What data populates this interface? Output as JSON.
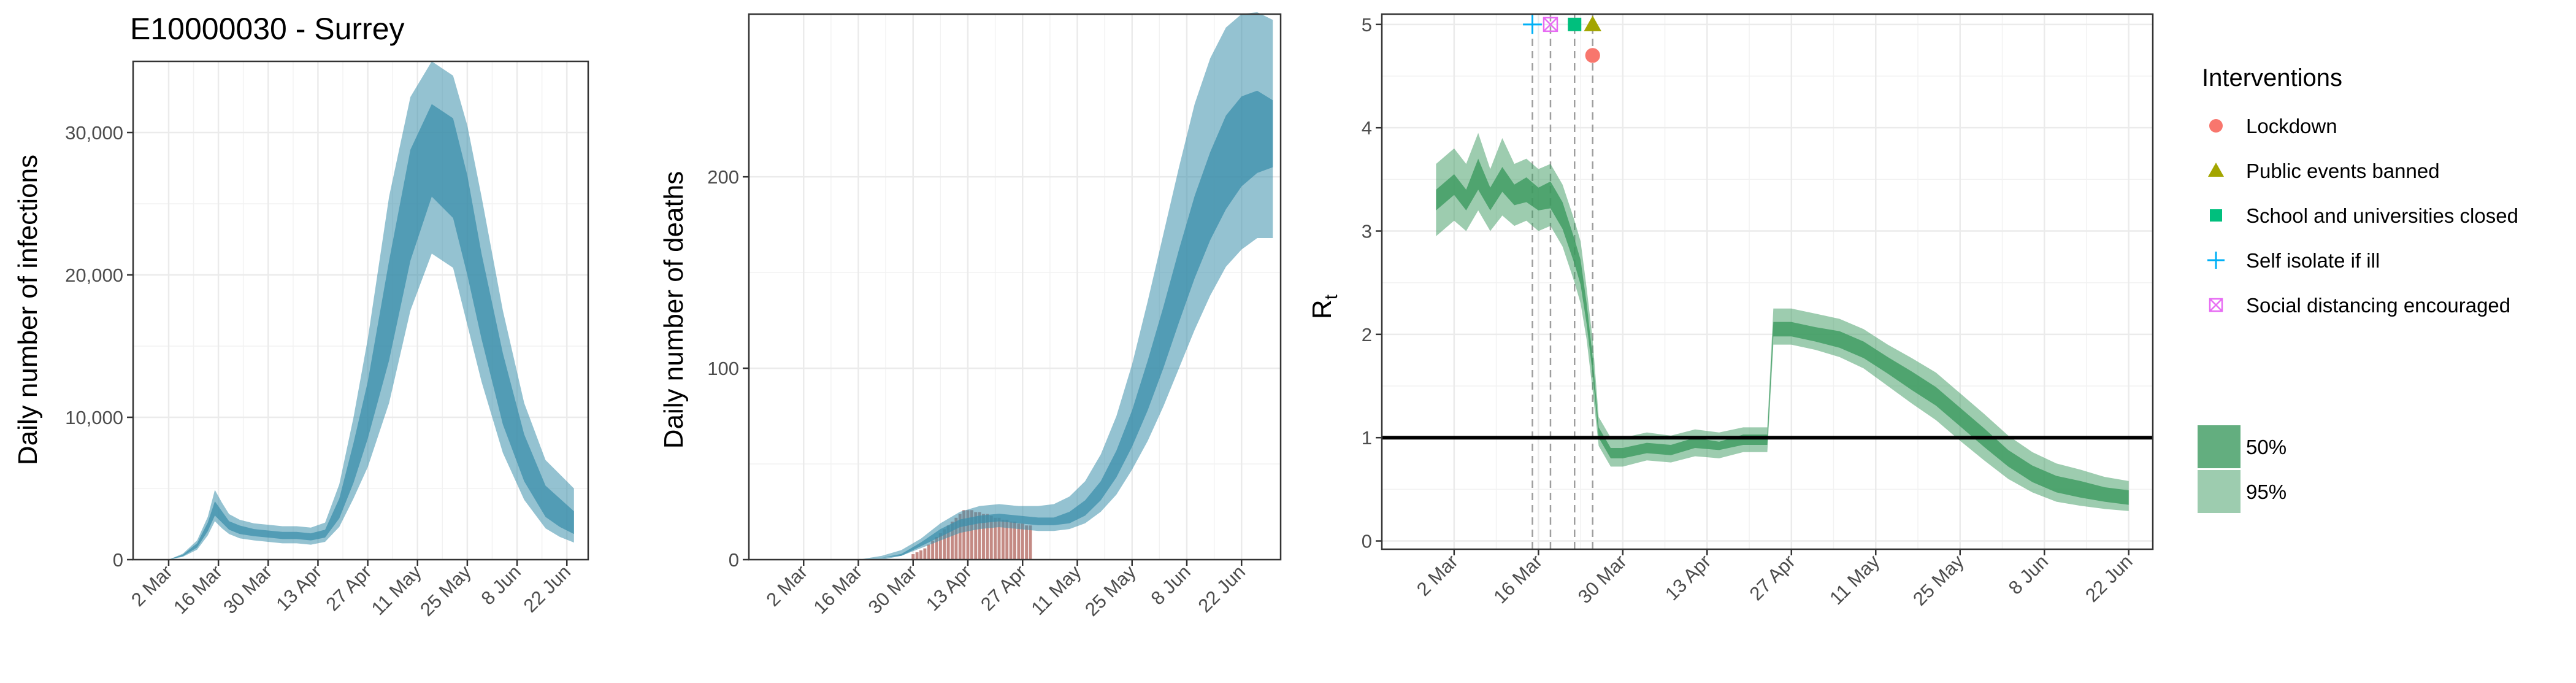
{
  "figure": {
    "title": "E10000030 - Surrey"
  },
  "colors": {
    "infections_fill": "#3c8fab",
    "deaths_bar": "#c48a84",
    "rt_fill": "#3c9a5f",
    "lockdown": "#f8766d",
    "public_events": "#a3a500",
    "school": "#00bf7d",
    "self_isolate": "#00b0f6",
    "social_distancing": "#e76bf3"
  },
  "legend": {
    "interventions_title": "Interventions",
    "interventions": [
      {
        "label": "Lockdown",
        "shape": "circle",
        "color": "#f8766d"
      },
      {
        "label": "Public events banned",
        "shape": "triangle",
        "color": "#a3a500"
      },
      {
        "label": "School and universities closed",
        "shape": "square",
        "color": "#00bf7d"
      },
      {
        "label": "Self isolate if ill",
        "shape": "plus",
        "color": "#00b0f6"
      },
      {
        "label": "Social distancing encouraged",
        "shape": "boxcross",
        "color": "#e76bf3"
      }
    ],
    "ci": [
      {
        "label": "50%",
        "color": "#3c9a5f",
        "opacity": 0.8
      },
      {
        "label": "95%",
        "color": "#3c9a5f",
        "opacity": 0.5
      }
    ]
  },
  "chart_data": [
    {
      "type": "area",
      "ylabel": "Daily number of infections",
      "xlabel": "",
      "x_tick_labels": [
        "2 Mar",
        "16 Mar",
        "30 Mar",
        "13 Apr",
        "27 Apr",
        "11 May",
        "25 May",
        "8 Jun",
        "22 Jun"
      ],
      "y_ticks": [
        0,
        10000,
        20000,
        30000
      ],
      "y_tick_labels": [
        "0",
        "10,000",
        "20,000",
        "30,000"
      ],
      "ylim": [
        0,
        35000
      ],
      "x_range_days": [
        -10,
        118
      ],
      "series_note": "day 0 = 2 Mar",
      "x": [
        0,
        4,
        8,
        11,
        13,
        15,
        17,
        20,
        24,
        28,
        32,
        36,
        40,
        44,
        48,
        52,
        56,
        62,
        68,
        74,
        80,
        84,
        88,
        94,
        100,
        106,
        110,
        114
      ],
      "median": [
        0,
        300,
        1000,
        2300,
        3600,
        3000,
        2400,
        2100,
        1900,
        1800,
        1700,
        1700,
        1600,
        1800,
        3600,
        6800,
        10500,
        17500,
        25000,
        28800,
        27500,
        23500,
        18500,
        12000,
        7000,
        4000,
        3200,
        2500
      ],
      "ci50_low": [
        0,
        250,
        850,
        2000,
        3100,
        2600,
        2100,
        1800,
        1650,
        1550,
        1450,
        1450,
        1350,
        1550,
        2900,
        5400,
        8500,
        14000,
        21000,
        25500,
        24000,
        20000,
        15500,
        9500,
        5500,
        3000,
        2300,
        1800
      ],
      "ci50_high": [
        0,
        350,
        1150,
        2600,
        4100,
        3400,
        2700,
        2400,
        2150,
        2050,
        1950,
        1950,
        1850,
        2100,
        4300,
        8200,
        12500,
        21000,
        28800,
        32000,
        31000,
        27000,
        21500,
        14500,
        8800,
        5200,
        4300,
        3400
      ],
      "ci95_low": [
        0,
        200,
        700,
        1700,
        2700,
        2200,
        1800,
        1500,
        1350,
        1250,
        1150,
        1150,
        1050,
        1250,
        2300,
        4300,
        6500,
        11000,
        17500,
        21500,
        20500,
        16500,
        12500,
        7500,
        4200,
        2200,
        1600,
        1200
      ],
      "ci95_high": [
        0,
        420,
        1350,
        3000,
        4900,
        4000,
        3200,
        2800,
        2550,
        2450,
        2350,
        2350,
        2250,
        2600,
        5300,
        10000,
        15500,
        25500,
        32500,
        35000,
        34000,
        30500,
        25500,
        17500,
        11000,
        7000,
        6000,
        5000
      ]
    },
    {
      "type": "area",
      "ylabel": "Daily number of deaths",
      "xlabel": "",
      "x_tick_labels": [
        "2 Mar",
        "16 Mar",
        "30 Mar",
        "13 Apr",
        "27 Apr",
        "11 May",
        "25 May",
        "8 Jun",
        "22 Jun"
      ],
      "y_ticks": [
        0,
        100,
        200
      ],
      "y_tick_labels": [
        "0",
        "100",
        "200"
      ],
      "ylim": [
        0,
        285
      ],
      "x_range_days": [
        -14,
        122
      ],
      "series_note": "day 0 = 2 Mar",
      "bars_days": [
        28,
        29,
        30,
        31,
        32,
        33,
        34,
        35,
        36,
        37,
        38,
        39,
        40,
        41,
        42,
        43,
        44,
        45,
        46,
        47,
        48,
        49,
        50,
        51,
        52,
        53,
        54,
        55,
        56,
        57,
        58
      ],
      "bars_values": [
        3,
        4,
        5,
        6,
        8,
        10,
        12,
        14,
        16,
        18,
        20,
        22,
        24,
        26,
        26,
        26,
        25,
        25,
        24,
        24,
        23,
        22,
        22,
        21,
        21,
        20,
        20,
        19,
        19,
        18,
        18
      ],
      "x": [
        14,
        20,
        25,
        30,
        35,
        40,
        45,
        50,
        55,
        60,
        64,
        68,
        72,
        76,
        80,
        84,
        88,
        92,
        96,
        100,
        104,
        108,
        112,
        116,
        120
      ],
      "median": [
        0,
        1,
        3,
        8,
        14,
        19,
        21,
        22,
        21,
        20,
        20,
        22,
        27,
        36,
        50,
        68,
        90,
        115,
        142,
        168,
        190,
        208,
        220,
        225,
        222
      ],
      "ci50_low": [
        0,
        1,
        2,
        7,
        12,
        17,
        19,
        20,
        19,
        18,
        18,
        19,
        23,
        31,
        43,
        59,
        78,
        100,
        124,
        147,
        167,
        183,
        195,
        202,
        205
      ],
      "ci50_high": [
        0,
        1,
        3,
        9,
        16,
        21,
        23,
        24,
        23,
        22,
        22,
        25,
        31,
        41,
        57,
        78,
        104,
        132,
        162,
        190,
        213,
        232,
        242,
        245,
        240
      ],
      "ci95_low": [
        0,
        0,
        2,
        6,
        10,
        14,
        16,
        17,
        16,
        15,
        15,
        16,
        19,
        25,
        34,
        47,
        62,
        80,
        100,
        120,
        138,
        153,
        162,
        168,
        168
      ],
      "ci95_high": [
        0,
        2,
        5,
        11,
        19,
        25,
        28,
        29,
        28,
        28,
        29,
        33,
        41,
        55,
        75,
        102,
        135,
        170,
        205,
        238,
        262,
        278,
        285,
        286,
        282
      ]
    },
    {
      "type": "area",
      "ylabel": "R",
      "ylabel_subscript": "t",
      "xlabel": "",
      "x_tick_labels": [
        "2 Mar",
        "16 Mar",
        "30 Mar",
        "13 Apr",
        "27 Apr",
        "11 May",
        "25 May",
        "8 Jun",
        "22 Jun"
      ],
      "y_ticks": [
        0,
        1,
        2,
        3,
        4,
        5
      ],
      "y_tick_labels": [
        "0",
        "1",
        "2",
        "3",
        "4",
        "5"
      ],
      "ylim": [
        -0.08,
        5.1
      ],
      "x_range_days": [
        -12,
        116
      ],
      "series_note": "day 0 = 2 Mar",
      "reference_line": 1,
      "intervention_days": [
        13,
        16,
        20,
        23
      ],
      "intervention_markers": [
        {
          "shape": "plus",
          "day": 13,
          "y": 5.0,
          "color": "#00b0f6"
        },
        {
          "shape": "boxcross",
          "day": 16,
          "y": 5.0,
          "color": "#e76bf3"
        },
        {
          "shape": "square",
          "day": 20,
          "y": 5.0,
          "color": "#00bf7d"
        },
        {
          "shape": "triangle",
          "day": 23,
          "y": 5.0,
          "color": "#a3a500"
        },
        {
          "shape": "circle",
          "day": 23,
          "y": 4.7,
          "color": "#f8766d"
        }
      ],
      "x": [
        -3,
        0,
        2,
        4,
        6,
        8,
        10,
        12,
        14,
        16,
        18,
        20,
        21,
        22,
        23,
        24,
        26,
        28,
        32,
        36,
        40,
        44,
        48,
        52,
        53,
        56,
        60,
        64,
        68,
        72,
        76,
        80,
        84,
        88,
        92,
        96,
        100,
        104,
        108,
        112
      ],
      "median": [
        3.3,
        3.45,
        3.3,
        3.55,
        3.3,
        3.5,
        3.35,
        3.4,
        3.3,
        3.35,
        3.15,
        2.8,
        2.6,
        2.2,
        1.7,
        1.05,
        0.85,
        0.85,
        0.9,
        0.88,
        0.95,
        0.92,
        0.98,
        0.98,
        2.05,
        2.05,
        2.0,
        1.95,
        1.85,
        1.7,
        1.55,
        1.4,
        1.2,
        1.0,
        0.8,
        0.65,
        0.55,
        0.5,
        0.45,
        0.42
      ],
      "ci50_low": [
        3.2,
        3.35,
        3.2,
        3.4,
        3.2,
        3.38,
        3.25,
        3.28,
        3.2,
        3.22,
        3.02,
        2.68,
        2.48,
        2.1,
        1.62,
        1.0,
        0.8,
        0.8,
        0.85,
        0.83,
        0.9,
        0.88,
        0.93,
        0.93,
        1.98,
        1.98,
        1.93,
        1.87,
        1.77,
        1.62,
        1.46,
        1.31,
        1.11,
        0.91,
        0.72,
        0.57,
        0.47,
        0.42,
        0.38,
        0.35
      ],
      "ci50_high": [
        3.4,
        3.55,
        3.4,
        3.7,
        3.42,
        3.62,
        3.45,
        3.52,
        3.42,
        3.48,
        3.28,
        2.92,
        2.72,
        2.3,
        1.78,
        1.1,
        0.9,
        0.9,
        0.95,
        0.93,
        1.0,
        0.96,
        1.03,
        1.03,
        2.12,
        2.12,
        2.07,
        2.03,
        1.93,
        1.78,
        1.64,
        1.49,
        1.29,
        1.09,
        0.88,
        0.73,
        0.63,
        0.58,
        0.52,
        0.49
      ],
      "ci95_low": [
        2.95,
        3.1,
        3.0,
        3.2,
        3.0,
        3.15,
        3.05,
        3.1,
        3.0,
        3.05,
        2.85,
        2.5,
        2.3,
        1.95,
        1.45,
        0.92,
        0.72,
        0.72,
        0.78,
        0.76,
        0.82,
        0.8,
        0.86,
        0.86,
        1.9,
        1.9,
        1.85,
        1.78,
        1.67,
        1.5,
        1.33,
        1.17,
        0.97,
        0.78,
        0.6,
        0.47,
        0.38,
        0.34,
        0.31,
        0.29
      ],
      "ci95_high": [
        3.65,
        3.8,
        3.65,
        3.95,
        3.6,
        3.9,
        3.65,
        3.7,
        3.6,
        3.65,
        3.45,
        3.1,
        2.9,
        2.45,
        1.95,
        1.2,
        1.0,
        1.0,
        1.05,
        1.02,
        1.08,
        1.05,
        1.1,
        1.1,
        2.25,
        2.25,
        2.2,
        2.15,
        2.05,
        1.9,
        1.77,
        1.63,
        1.43,
        1.23,
        1.02,
        0.86,
        0.75,
        0.69,
        0.62,
        0.58
      ]
    }
  ]
}
